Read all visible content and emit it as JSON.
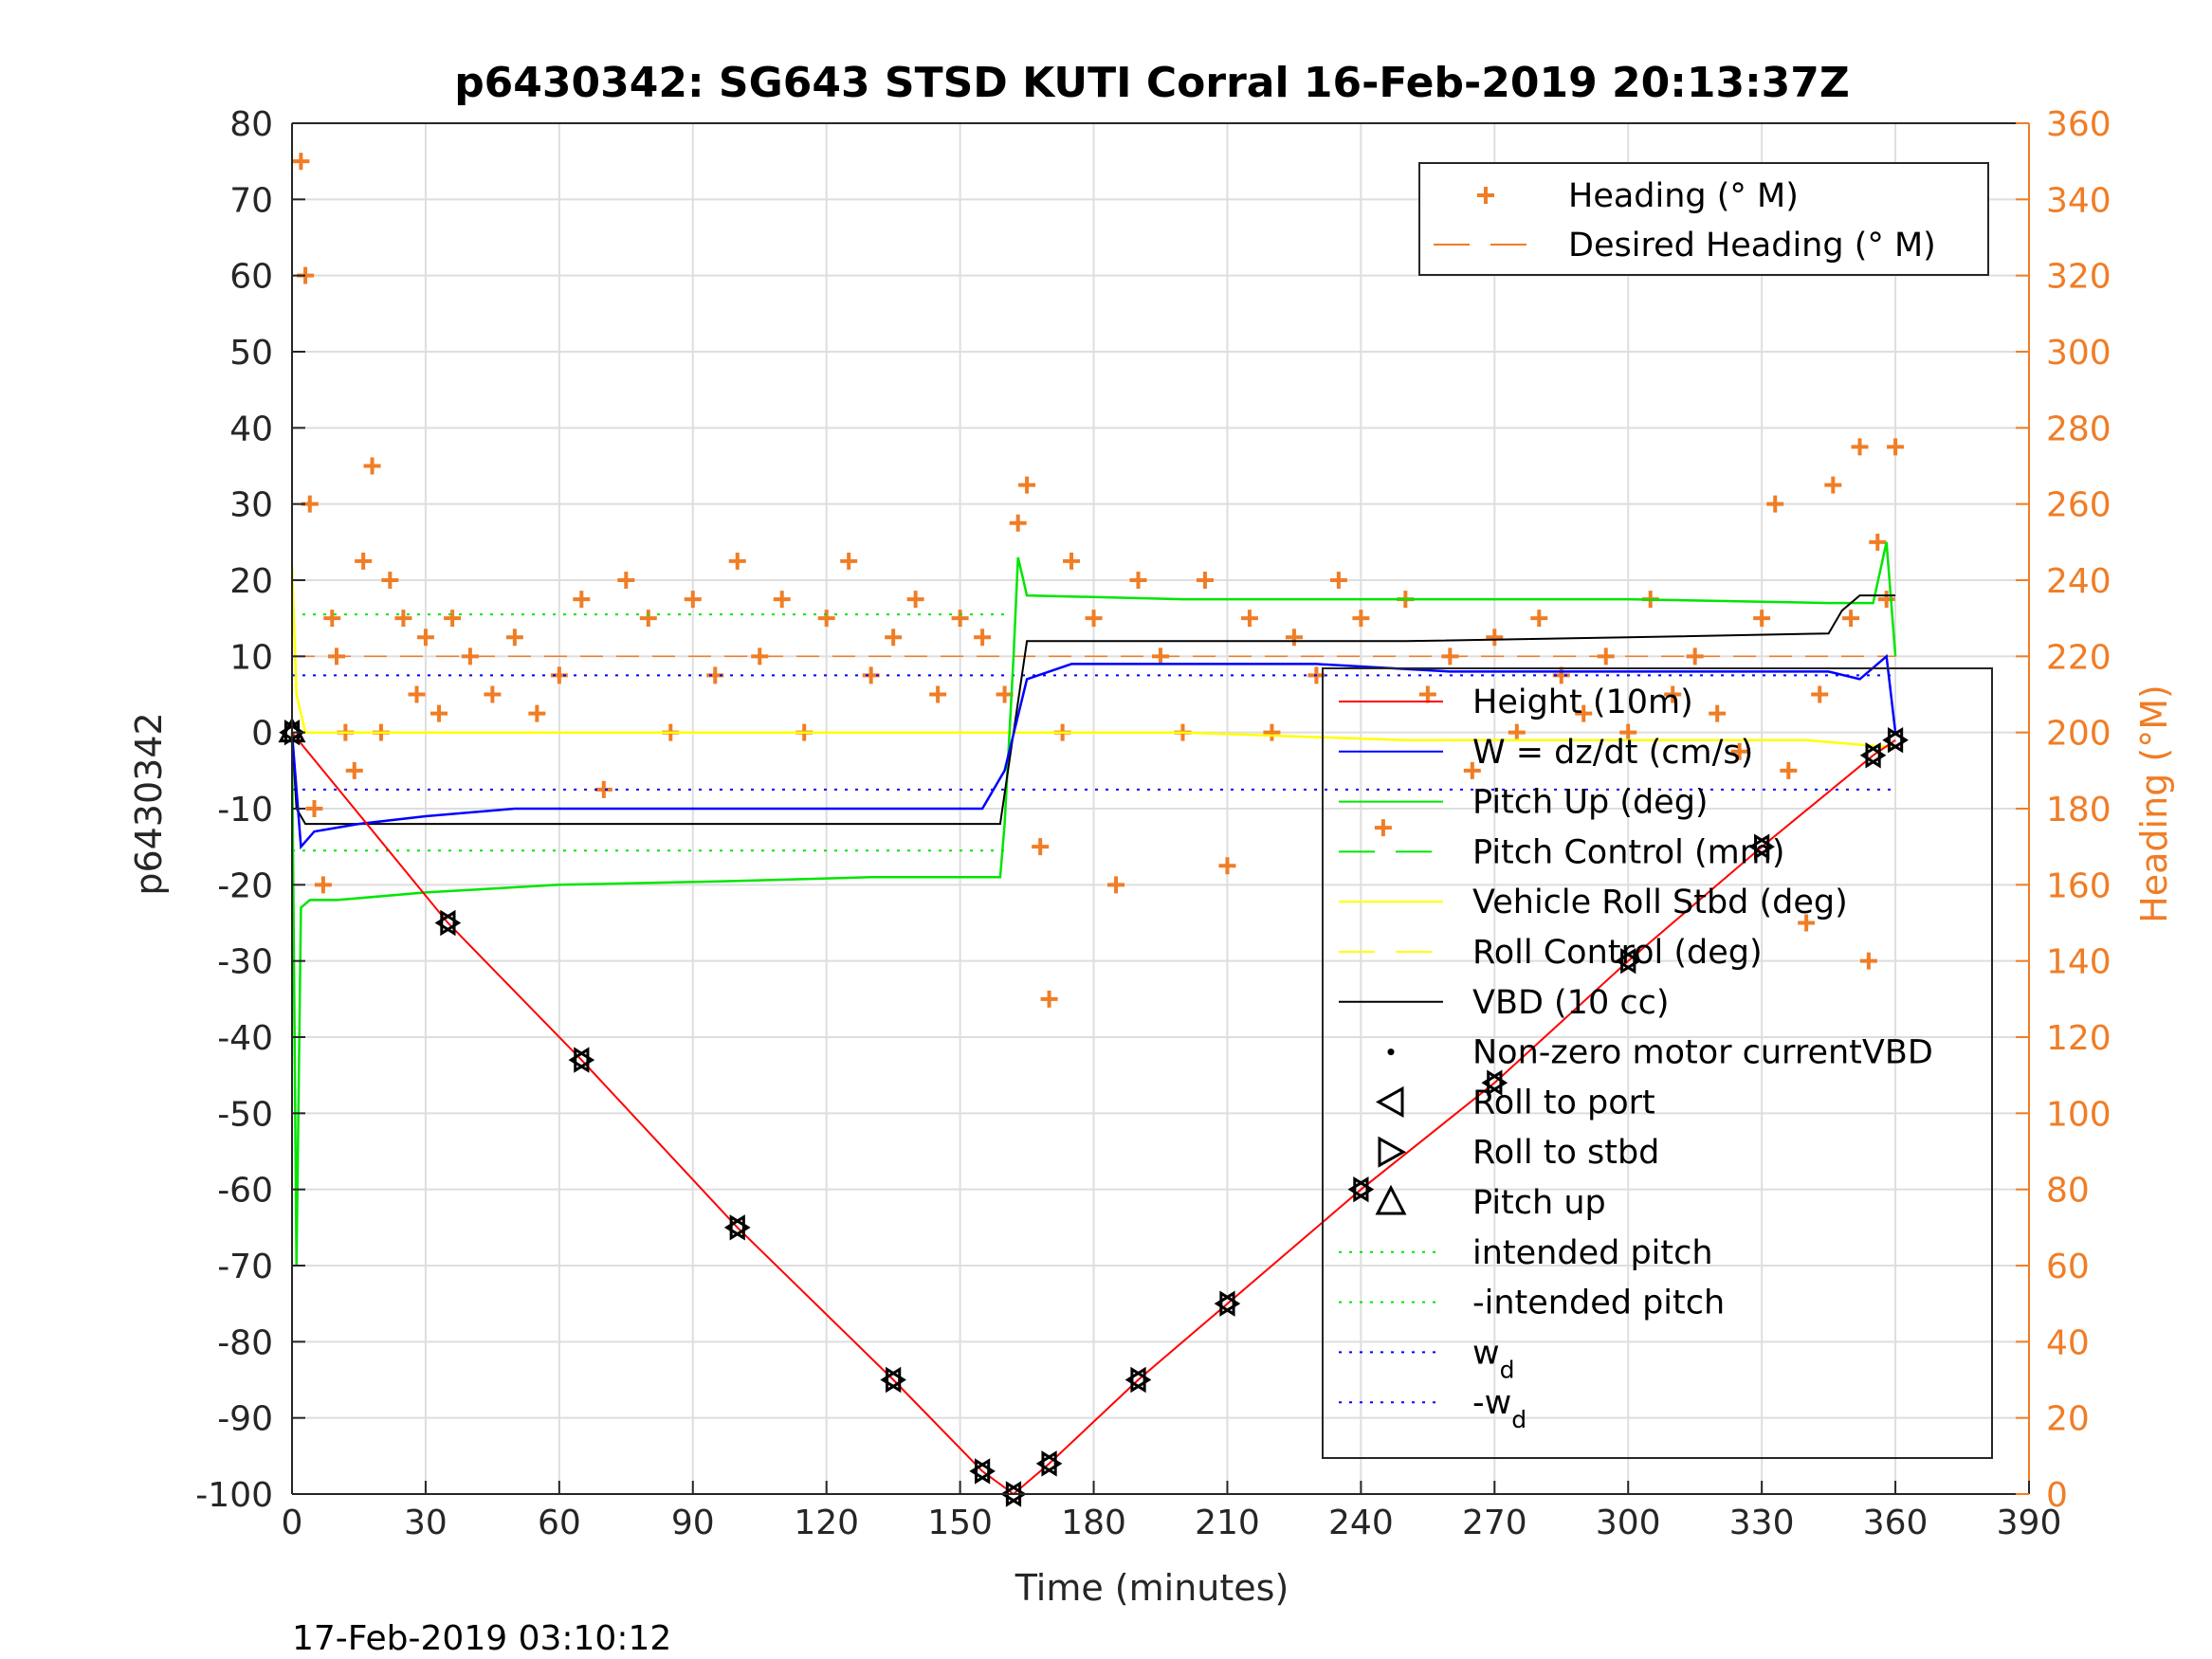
{
  "chart_data": {
    "type": "line",
    "title": "p6430342: SG643 STSD KUTI Corral 16-Feb-2019 20:13:37Z",
    "xlabel": "Time (minutes)",
    "ylabel": "p6430342",
    "ylabel_right": "Heading (°M)",
    "footer": "17-Feb-2019 03:10:12",
    "xlim": [
      0,
      390
    ],
    "ylim": [
      -100,
      80
    ],
    "ylim_right": [
      0,
      360
    ],
    "x_ticks": [
      0,
      30,
      60,
      90,
      120,
      150,
      180,
      210,
      240,
      270,
      300,
      330,
      360,
      390
    ],
    "y_ticks": [
      -100,
      -90,
      -80,
      -70,
      -60,
      -50,
      -40,
      -30,
      -20,
      -10,
      0,
      10,
      20,
      30,
      40,
      50,
      60,
      70,
      80
    ],
    "y_ticks_right": [
      0,
      20,
      40,
      60,
      80,
      100,
      120,
      140,
      160,
      180,
      200,
      220,
      240,
      260,
      280,
      300,
      320,
      340,
      360
    ],
    "grid": true,
    "colors": {
      "heading": "#f07d26",
      "depth": "#ff0000",
      "w": "#0000ff",
      "pitch": "#00e600",
      "roll": "#ffff00",
      "vbd": "#000000"
    },
    "legend_top": [
      {
        "name": "Heading (° M)",
        "style": "plus",
        "color": "#f07d26"
      },
      {
        "name": "Desired Heading (° M)",
        "style": "dash",
        "color": "#f07d26"
      }
    ],
    "legend_main": [
      {
        "name": "Height (10m)",
        "style": "line",
        "color": "#ff0000"
      },
      {
        "name": "W = dz/dt (cm/s)",
        "style": "line",
        "color": "#0000ff"
      },
      {
        "name": "Pitch Up (deg)",
        "style": "line",
        "color": "#00e600"
      },
      {
        "name": "Pitch Control (mm)",
        "style": "dash",
        "color": "#00e600"
      },
      {
        "name": "Vehicle Roll Stbd (deg)",
        "style": "line",
        "color": "#ffff00"
      },
      {
        "name": "Roll Control (deg)",
        "style": "dash",
        "color": "#ffff00"
      },
      {
        "name": "VBD (10 cc)",
        "style": "line",
        "color": "#000000"
      },
      {
        "name": "Non-zero motor currentVBD",
        "style": "dot",
        "color": "#000000"
      },
      {
        "name": "Roll to port",
        "style": "tri-left",
        "color": "#000000"
      },
      {
        "name": "Roll to stbd",
        "style": "tri-right",
        "color": "#000000"
      },
      {
        "name": "Pitch up",
        "style": "tri-up",
        "color": "#000000"
      },
      {
        "name": "intended pitch",
        "style": "dotted",
        "color": "#00e600"
      },
      {
        "name": "-intended pitch",
        "style": "dotted",
        "color": "#00e600"
      },
      {
        "name": "w",
        "sub": "d",
        "style": "dotted",
        "color": "#0000ff"
      },
      {
        "name": "-w",
        "sub": "d",
        "style": "dotted",
        "color": "#0000ff"
      }
    ],
    "series": [
      {
        "name": "Height (10m)",
        "axis": "left",
        "x": [
          0,
          35,
          65,
          100,
          135,
          155,
          162,
          170,
          190,
          210,
          240,
          270,
          300,
          330,
          355,
          360
        ],
        "y": [
          0,
          -25,
          -43,
          -65,
          -85,
          -97,
          -100,
          -96,
          -85,
          -75,
          -60,
          -46,
          -30,
          -15,
          -3,
          -1
        ]
      },
      {
        "name": "W = dz/dt (cm/s)",
        "axis": "left",
        "x": [
          0,
          2,
          5,
          15,
          30,
          50,
          80,
          110,
          130,
          155,
          160,
          165,
          175,
          200,
          230,
          260,
          300,
          330,
          345,
          352,
          358,
          360
        ],
        "y": [
          0,
          -15,
          -13,
          -12,
          -11,
          -10,
          -10,
          -10,
          -10,
          -10,
          -5,
          7,
          9,
          9,
          9,
          8,
          8,
          8,
          8,
          7,
          10,
          0
        ]
      },
      {
        "name": "Pitch Up (deg)",
        "axis": "left",
        "x": [
          0,
          1,
          2,
          4,
          10,
          30,
          60,
          100,
          130,
          159,
          160,
          162,
          163,
          165,
          200,
          250,
          300,
          345,
          355,
          358,
          360
        ],
        "y": [
          0,
          -70,
          -23,
          -22,
          -22,
          -21,
          -20,
          -19.5,
          -19,
          -19,
          -12,
          10,
          23,
          18,
          17.5,
          17.5,
          17.5,
          17,
          17,
          25,
          10
        ]
      },
      {
        "name": "Vehicle Roll Stbd (deg)",
        "axis": "left",
        "x": [
          0,
          1,
          3,
          10,
          30,
          60,
          100,
          150,
          165,
          200,
          250,
          300,
          340,
          360
        ],
        "y": [
          22,
          5,
          0,
          0,
          0,
          0,
          0,
          0,
          0,
          0,
          -1,
          -1,
          -1,
          -2
        ]
      },
      {
        "name": "VBD (10 cc)",
        "axis": "left",
        "x": [
          0,
          1,
          3,
          30,
          60,
          100,
          159,
          162,
          165,
          200,
          250,
          300,
          345,
          348,
          352,
          360
        ],
        "y": [
          0,
          -10,
          -12,
          -12,
          -12,
          -12,
          -12,
          0,
          12,
          12,
          12,
          12.5,
          13,
          16,
          18,
          18
        ]
      },
      {
        "name": "intended pitch",
        "axis": "left",
        "x": [
          0,
          160
        ],
        "y": [
          15.5,
          15.5
        ]
      },
      {
        "name": "-intended pitch",
        "axis": "left",
        "x": [
          0,
          160
        ],
        "y": [
          -15.5,
          -15.5
        ]
      },
      {
        "name": "w",
        "axis": "left",
        "x": [
          0,
          360
        ],
        "y": [
          -7.5,
          -7.5
        ]
      },
      {
        "name": "-w",
        "axis": "left",
        "x": [
          0,
          360
        ],
        "y": [
          7.5,
          7.5
        ]
      },
      {
        "name": "Desired Heading (° M)",
        "axis": "right",
        "x": [
          0,
          360
        ],
        "y": [
          220,
          220
        ]
      },
      {
        "name": "Heading (° M)",
        "axis": "right",
        "x": [
          2,
          3,
          4,
          5,
          7,
          9,
          10,
          12,
          14,
          16,
          18,
          20,
          22,
          25,
          28,
          30,
          33,
          36,
          40,
          45,
          50,
          55,
          60,
          65,
          70,
          75,
          80,
          85,
          90,
          95,
          100,
          105,
          110,
          115,
          120,
          125,
          130,
          135,
          140,
          145,
          150,
          155,
          160,
          163,
          165,
          168,
          170,
          173,
          175,
          180,
          185,
          190,
          195,
          200,
          205,
          210,
          215,
          220,
          225,
          230,
          235,
          240,
          245,
          250,
          255,
          260,
          265,
          270,
          275,
          280,
          285,
          290,
          295,
          300,
          305,
          310,
          315,
          320,
          325,
          330,
          333,
          336,
          340,
          343,
          346,
          350,
          352,
          354,
          356,
          358,
          360
        ],
        "y": [
          350,
          320,
          260,
          180,
          160,
          230,
          220,
          200,
          190,
          245,
          270,
          200,
          240,
          230,
          210,
          225,
          205,
          230,
          220,
          210,
          225,
          205,
          215,
          235,
          185,
          240,
          230,
          200,
          235,
          215,
          245,
          220,
          235,
          200,
          230,
          245,
          215,
          225,
          235,
          210,
          230,
          225,
          210,
          255,
          265,
          170,
          130,
          200,
          245,
          230,
          160,
          240,
          220,
          200,
          240,
          165,
          230,
          200,
          225,
          215,
          240,
          230,
          175,
          235,
          210,
          220,
          190,
          225,
          200,
          230,
          215,
          205,
          220,
          200,
          235,
          210,
          220,
          205,
          195,
          230,
          260,
          190,
          150,
          210,
          265,
          230,
          275,
          140,
          250,
          235,
          275
        ]
      }
    ]
  }
}
